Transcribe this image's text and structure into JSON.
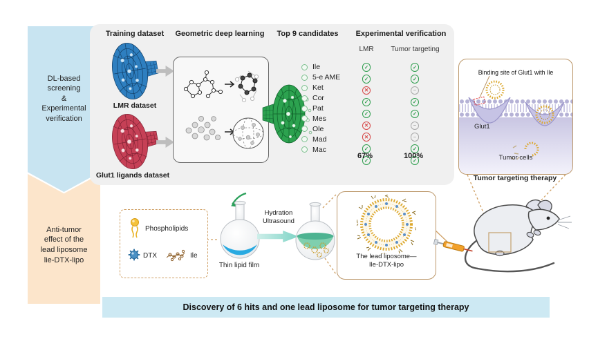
{
  "left_banners": {
    "dl": {
      "text": "DL-based\nscreening\n&\nExperimental\nverification"
    },
    "anti_tumor": {
      "text": "Anti-tumor\neffect of the\nlead liposome\nlie-DTX-lipo"
    }
  },
  "panel": {
    "headers": [
      "Training dataset",
      "Geometric deep learning",
      "Top 9 candidates",
      "Experimental verification"
    ],
    "datasets": [
      {
        "label": "LMR dataset"
      },
      {
        "label": "Glut1 ligands dataset"
      }
    ],
    "verification": {
      "columns": [
        "LMR",
        "Tumor targeting"
      ],
      "rows": [
        {
          "name": "Ile",
          "lmr": "check",
          "tumor": "check"
        },
        {
          "name": "5-e AME",
          "lmr": "check",
          "tumor": "check"
        },
        {
          "name": "Ket",
          "lmr": "cross",
          "tumor": "minus"
        },
        {
          "name": "Cor",
          "lmr": "check",
          "tumor": "check"
        },
        {
          "name": "Pat",
          "lmr": "check",
          "tumor": "check"
        },
        {
          "name": "Mes",
          "lmr": "cross",
          "tumor": "minus"
        },
        {
          "name": "Ole",
          "lmr": "cross",
          "tumor": "minus"
        },
        {
          "name": "Mad",
          "lmr": "check",
          "tumor": "check"
        },
        {
          "name": "Mac",
          "lmr": "check",
          "tumor": "check"
        }
      ],
      "totals": {
        "lmr": "67%",
        "tumor": "100%"
      }
    }
  },
  "glut1_panel": {
    "caption": "Binding site of Glut1 with Ile",
    "glut1_label": "Glut1",
    "tumor_cells_label": "Tumor cells",
    "title": "Tumor targeting therapy"
  },
  "preparation": {
    "ingredients": [
      {
        "label": "Phospholipids"
      },
      {
        "label": "DTX"
      },
      {
        "label": "Ile"
      }
    ],
    "flask1_label": "Thin lipid film",
    "process_label": "Hydration\nUltrasound",
    "liposome_label": "The lead liposome—\nIle-DTX-lipo"
  },
  "footer": {
    "text": "Discovery of 6 hits and one lead liposome for tumor targeting therapy"
  },
  "icons": {
    "check": "✓",
    "cross": "✕",
    "minus": "−"
  },
  "colors": {
    "banner_blue": "#c8e4f1",
    "banner_peach": "#fce5cb",
    "panel_gray": "#f0f0f0",
    "footer_blue": "#cde9f3",
    "tan_border": "#bb9668",
    "gold": "#dca72c",
    "check_green": "#2f9e4e",
    "cross_red": "#d64545",
    "neutral_gray": "#a8a8a8",
    "lmr_disc_blue": "#2e7fc0",
    "glut1_disc_red": "#c64056",
    "candidate_disc_green": "#2ca24f"
  }
}
